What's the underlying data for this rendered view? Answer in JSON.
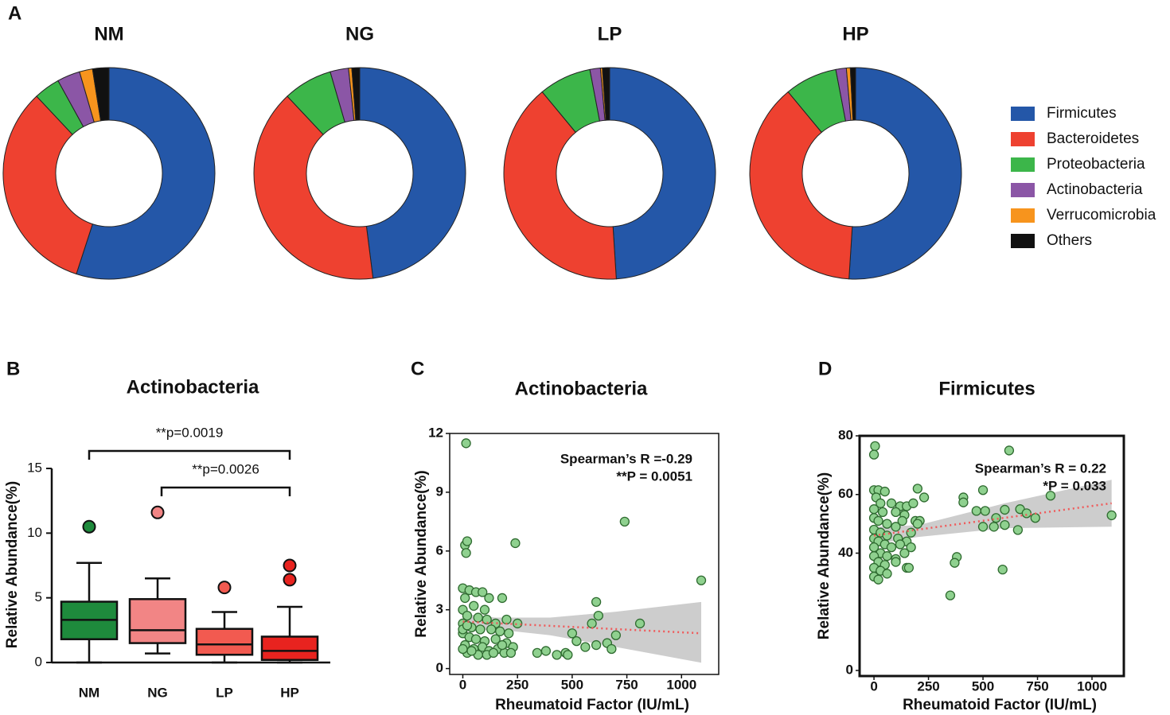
{
  "panels": [
    "A",
    "B",
    "C",
    "D"
  ],
  "chart_data": [
    {
      "type": "donut",
      "categories": [
        "Firmicutes",
        "Bacteroidetes",
        "Proteobacteria",
        "Actinobacteria",
        "Verrucomicrobia",
        "Others"
      ],
      "colors": [
        "#2457a8",
        "#ee4130",
        "#3cb64a",
        "#8b56a6",
        "#f7941d",
        "#111111"
      ],
      "series": [
        {
          "name": "NM",
          "values": [
            55,
            33,
            4,
            3.5,
            2,
            2.5
          ]
        },
        {
          "name": "NG",
          "values": [
            48,
            40,
            7.5,
            2.8,
            0.5,
            1.2
          ]
        },
        {
          "name": "LP",
          "values": [
            49,
            40,
            8,
            1.6,
            0.3,
            1.1
          ]
        },
        {
          "name": "HP",
          "values": [
            51,
            38,
            8,
            1.6,
            0.6,
            0.8
          ]
        }
      ]
    },
    {
      "type": "box",
      "title": "Actinobacteria",
      "ylabel": "Relative Abundance(%)",
      "categories": [
        "NM",
        "NG",
        "LP",
        "HP"
      ],
      "colors": [
        "#1e8a3c",
        "#f28585",
        "#f25a50",
        "#e8231f"
      ],
      "boxes": [
        {
          "min": 0,
          "q1": 1.8,
          "median": 3.3,
          "q3": 4.7,
          "max": 7.7,
          "outliers": [
            10.5
          ]
        },
        {
          "min": 0.7,
          "q1": 1.5,
          "median": 2.5,
          "q3": 4.9,
          "max": 6.5,
          "outliers": [
            11.6
          ]
        },
        {
          "min": 0,
          "q1": 0.6,
          "median": 1.4,
          "q3": 2.6,
          "max": 3.9,
          "outliers": [
            5.8
          ]
        },
        {
          "min": 0,
          "q1": 0.2,
          "median": 0.9,
          "q3": 2.0,
          "max": 4.3,
          "outliers": [
            6.4,
            7.5
          ]
        }
      ],
      "ylim": [
        0,
        15
      ],
      "yticks": [
        0,
        5,
        10,
        15
      ],
      "annotations": [
        "**p=0.0019",
        "**p=0.0026"
      ]
    },
    {
      "type": "scatter",
      "title": "Actinobacteria",
      "xlabel": "Rheumatoid Factor (IU/mL)",
      "ylabel": "Relative Abundance(%)",
      "x": [
        15,
        240,
        10,
        20,
        15,
        740,
        1090,
        610,
        620,
        590,
        810,
        500,
        520,
        560,
        610,
        660,
        700,
        680,
        470,
        480,
        430,
        380,
        340,
        250,
        150,
        200,
        100,
        0,
        30,
        60,
        90,
        120,
        180,
        10,
        50,
        0,
        20,
        70,
        110,
        0,
        40,
        80,
        130,
        170,
        210,
        0,
        30,
        60,
        100,
        150,
        200,
        230,
        10,
        50,
        90,
        120,
        160,
        190,
        220,
        20,
        70,
        110,
        140,
        0,
        40,
        180,
        0,
        20
      ],
      "values": [
        11.5,
        6.4,
        6.3,
        6.5,
        5.9,
        7.5,
        4.5,
        3.4,
        2.7,
        2.3,
        2.3,
        1.8,
        1.4,
        1.1,
        1.2,
        1.3,
        1.7,
        1.0,
        0.8,
        0.7,
        0.7,
        0.9,
        0.8,
        2.3,
        2.3,
        2.5,
        3.0,
        4.1,
        4.0,
        3.9,
        3.9,
        3.6,
        3.6,
        3.6,
        3.2,
        3.0,
        2.7,
        2.6,
        2.5,
        2.3,
        2.1,
        2.0,
        2.0,
        1.9,
        1.8,
        1.8,
        1.6,
        1.5,
        1.4,
        1.5,
        1.3,
        1.1,
        1.2,
        1.0,
        1.1,
        0.9,
        1.0,
        0.8,
        0.8,
        0.8,
        0.7,
        0.7,
        0.8,
        1.0,
        0.9,
        1.2,
        2.0,
        2.2
      ],
      "trend": {
        "x": [
          0,
          1090
        ],
        "values": [
          2.4,
          1.8
        ]
      },
      "band": {
        "x": [
          0,
          150,
          400,
          700,
          1090
        ],
        "lower": [
          1.9,
          2.0,
          1.7,
          1.1,
          0.3
        ],
        "upper": [
          2.8,
          2.6,
          2.6,
          2.9,
          3.4
        ]
      },
      "xlim": [
        -60,
        1170
      ],
      "ylim": [
        -0.3,
        12
      ],
      "xticks": [
        0,
        250,
        500,
        750,
        1000
      ],
      "yticks": [
        0,
        3,
        6,
        9,
        12
      ],
      "annotations": [
        "Spearman’s R =-0.29",
        "**P = 0.0051"
      ]
    },
    {
      "type": "scatter",
      "title": "Firmicutes",
      "xlabel": "Rheumatoid Factor (IU/mL)",
      "ylabel": "Relative Abundance(%)",
      "x": [
        5,
        0,
        620,
        810,
        410,
        410,
        500,
        1090,
        470,
        510,
        560,
        600,
        670,
        700,
        740,
        500,
        550,
        600,
        660,
        380,
        370,
        590,
        350,
        0,
        20,
        50,
        10,
        30,
        80,
        120,
        150,
        200,
        230,
        180,
        0,
        40,
        100,
        140,
        190,
        210,
        0,
        20,
        60,
        100,
        130,
        170,
        200,
        0,
        30,
        60,
        110,
        150,
        0,
        20,
        50,
        80,
        120,
        170,
        0,
        30,
        60,
        100,
        140,
        0,
        20,
        50,
        0,
        30,
        60,
        0,
        20,
        150,
        160,
        100
      ],
      "values": [
        76.5,
        73.6,
        75,
        59.6,
        59,
        57.3,
        61.5,
        52.9,
        54.4,
        54.4,
        52,
        54.8,
        55,
        53.6,
        52,
        49,
        49,
        49.6,
        47.9,
        38.7,
        36.7,
        34.4,
        25.6,
        61.5,
        61.5,
        61,
        59,
        57,
        57,
        56,
        56,
        62,
        59,
        57,
        55,
        54,
        54,
        53,
        51,
        51,
        52,
        51,
        50,
        49,
        51,
        47,
        50,
        48,
        47,
        46,
        45,
        44,
        45,
        44,
        43,
        42,
        43,
        42,
        42,
        40,
        39,
        38,
        40,
        39,
        37,
        36,
        35,
        34,
        33,
        32,
        31,
        35,
        35,
        37
      ],
      "trend": {
        "x": [
          0,
          1090
        ],
        "values": [
          46,
          57
        ]
      },
      "band": {
        "x": [
          0,
          200,
          600,
          1090
        ],
        "lower": [
          43,
          45.5,
          48.5,
          49
        ],
        "upper": [
          49,
          49.5,
          57,
          65
        ]
      },
      "xlim": [
        -66,
        1146
      ],
      "ylim": [
        -1.9,
        80
      ],
      "xticks": [
        0,
        250,
        500,
        750,
        1000
      ],
      "yticks": [
        0,
        40,
        60,
        80
      ],
      "annotations": [
        "Spearman’s R = 0.22",
        "*P = 0.033"
      ]
    }
  ]
}
